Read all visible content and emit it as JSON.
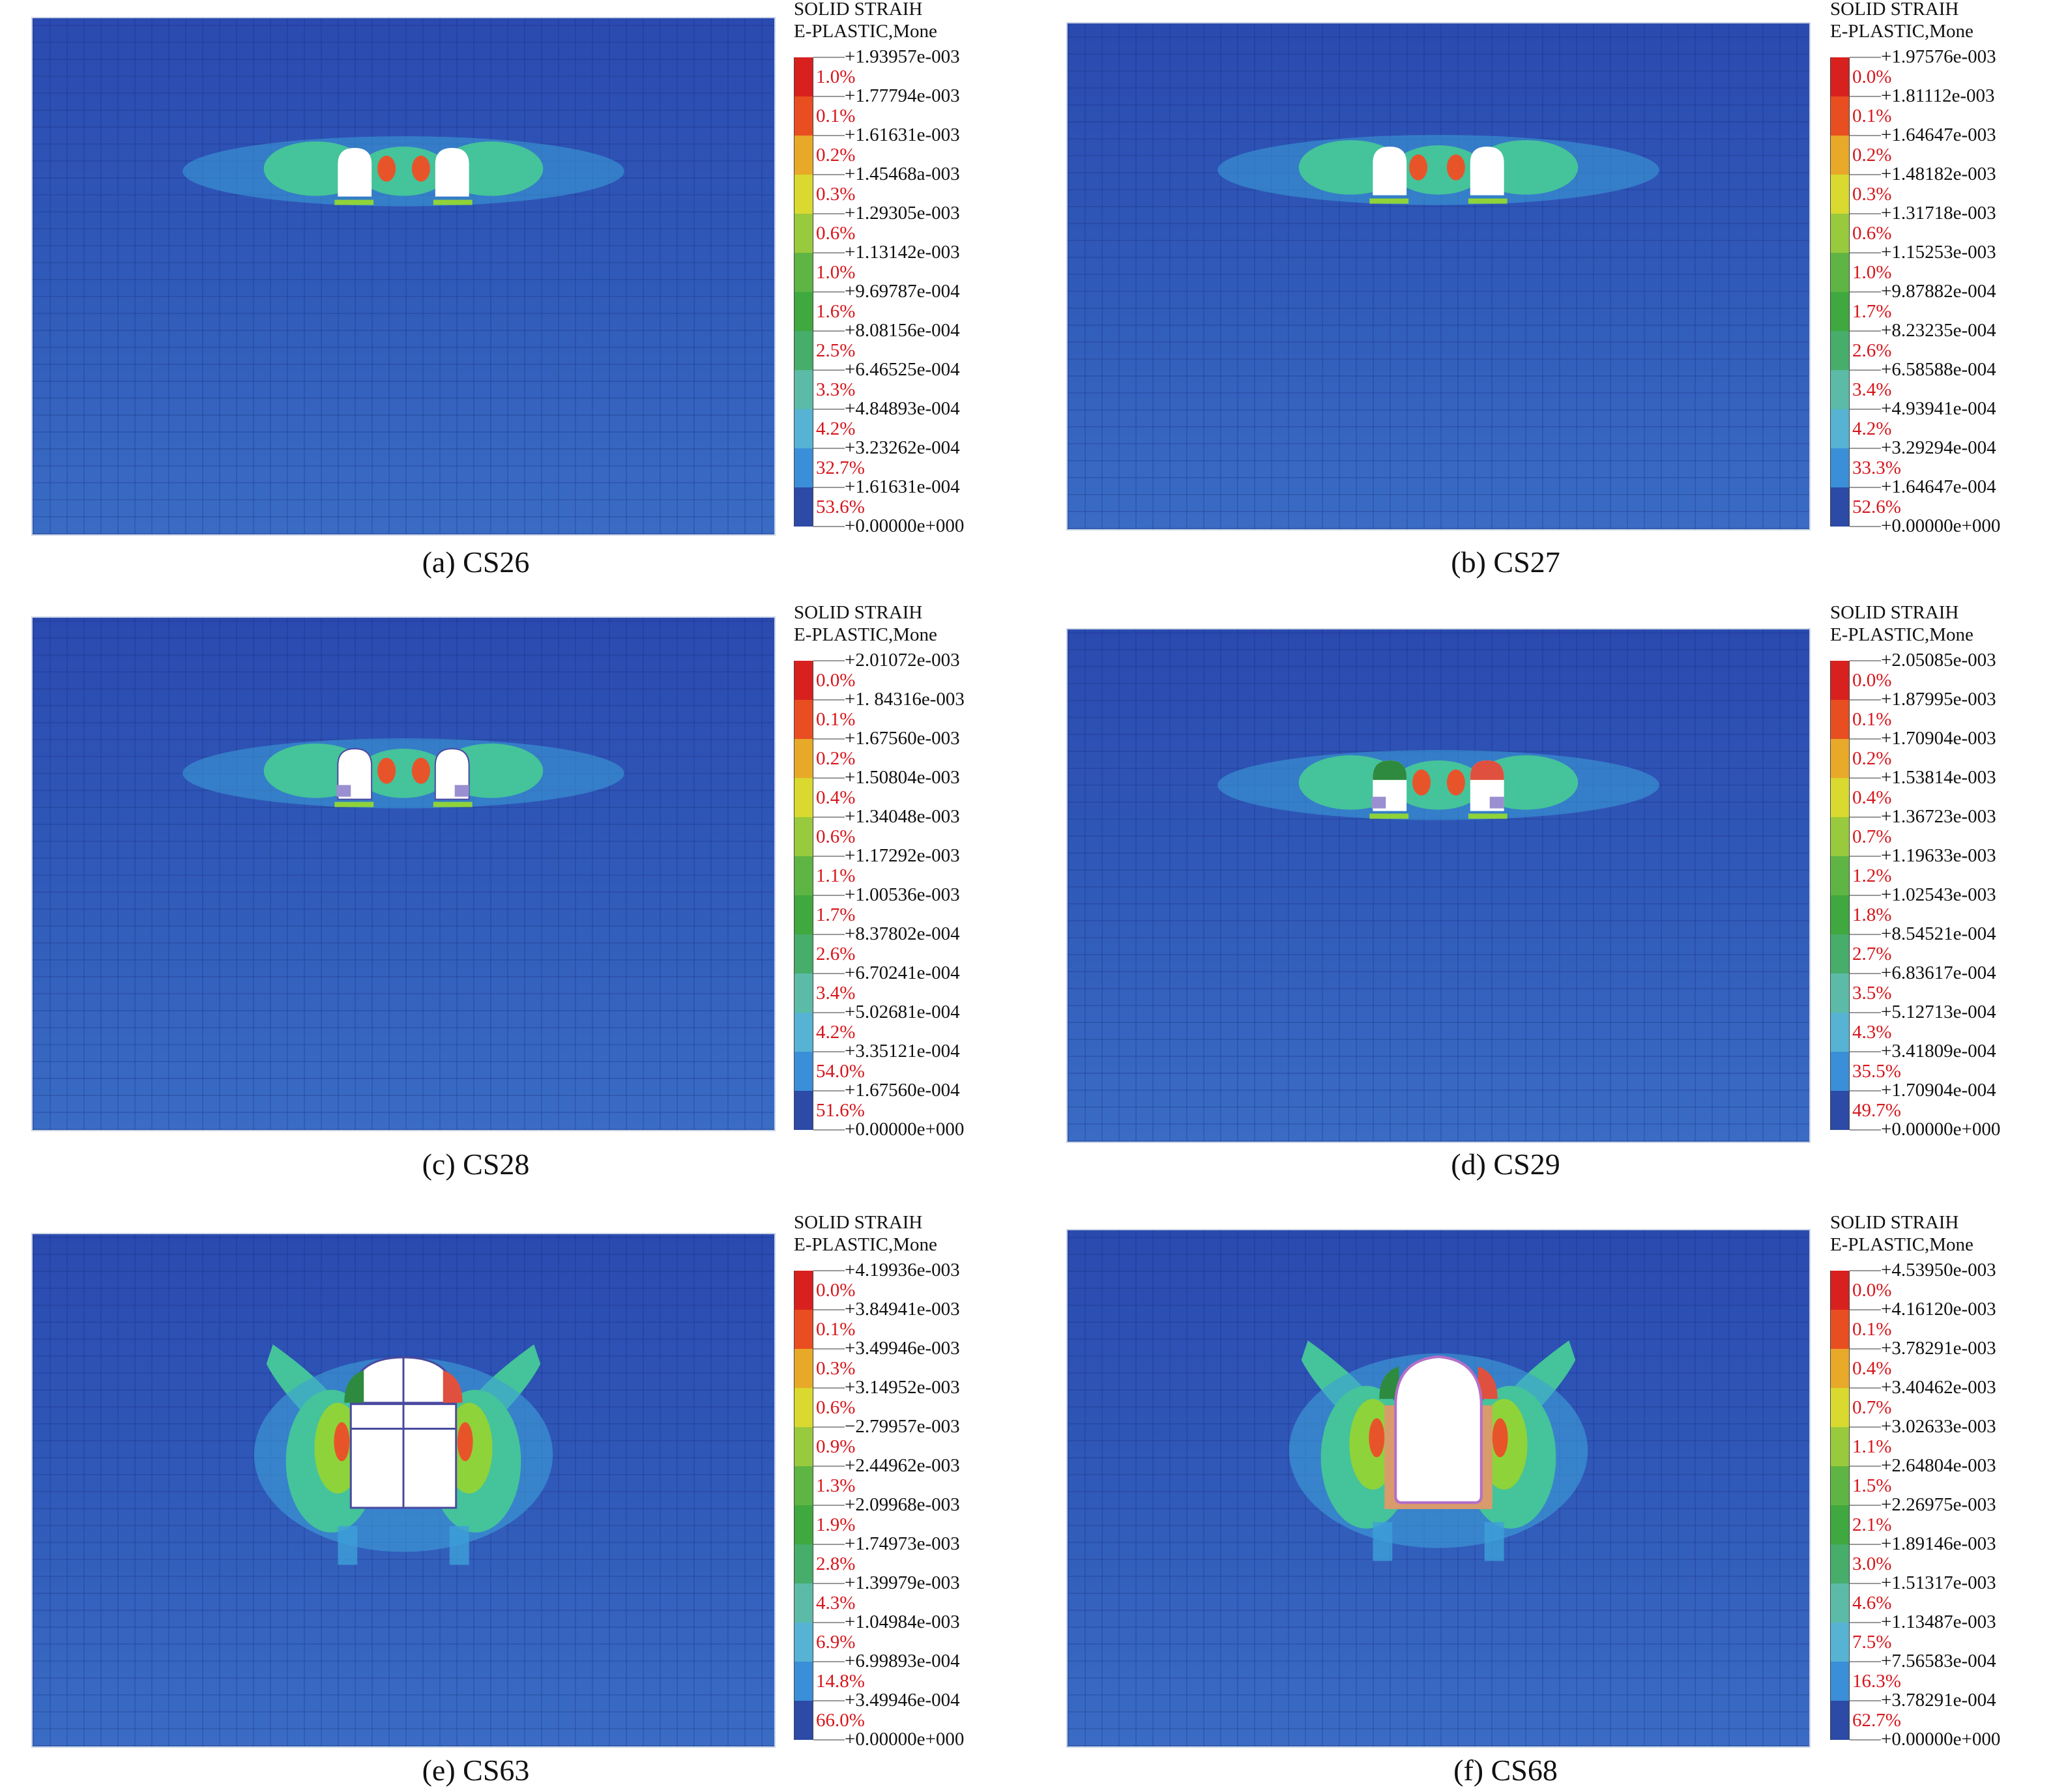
{
  "panels": [
    {
      "caption": "(a) CS26",
      "legend_title": [
        "SOLID STRAIH",
        "E-PLASTIC,Mone"
      ],
      "values": [
        "+1.93957e-003",
        "+1.77794e-003",
        "+1.61631e-003",
        "+1.45468a-003",
        "+1.29305e-003",
        "+1.13142e-003",
        "+9.69787e-004",
        "+8.08156e-004",
        "+6.46525e-004",
        "+4.84893e-004",
        "+3.23262e-004",
        "+1.61631e-004",
        "+0.00000e+000"
      ],
      "percents": [
        "1.0%",
        "0.1%",
        "0.2%",
        "0.3%",
        "0.6%",
        "1.0%",
        "1.6%",
        "2.5%",
        "3.3%",
        "4.2%",
        "32.7%",
        "53.6%"
      ]
    },
    {
      "caption": "(b) CS27",
      "legend_title": [
        "SOLID STRAIH",
        "E-PLASTIC,Mone"
      ],
      "values": [
        "+1.97576e-003",
        "+1.81112e-003",
        "+1.64647e-003",
        "+1.48182e-003",
        "+1.31718e-003",
        "+1.15253e-003",
        "+9.87882e-004",
        "+8.23235e-004",
        "+6.58588e-004",
        "+4.93941e-004",
        "+3.29294e-004",
        "+1.64647e-004",
        "+0.00000e+000"
      ],
      "percents": [
        "0.0%",
        "0.1%",
        "0.2%",
        "0.3%",
        "0.6%",
        "1.0%",
        "1.7%",
        "2.6%",
        "3.4%",
        "4.2%",
        "33.3%",
        "52.6%"
      ]
    },
    {
      "caption": "(c) CS28",
      "legend_title": [
        "SOLID STRAIH",
        "E-PLASTIC,Mone"
      ],
      "values": [
        "+2.01072e-003",
        "+1. 84316e-003",
        "+1.67560e-003",
        "+1.50804e-003",
        "+1.34048e-003",
        "+1.17292e-003",
        "+1.00536e-003",
        "+8.37802e-004",
        "+6.70241e-004",
        "+5.02681e-004",
        "+3.35121e-004",
        "+1.67560e-004",
        "+0.00000e+000"
      ],
      "percents": [
        "0.0%",
        "0.1%",
        "0.2%",
        "0.4%",
        "0.6%",
        "1.1%",
        "1.7%",
        "2.6%",
        "3.4%",
        "4.2%",
        "54.0%",
        "51.6%"
      ]
    },
    {
      "caption": "(d) CS29",
      "legend_title": [
        "SOLID STRAIH",
        "E-PLASTIC,Mone"
      ],
      "values": [
        "+2.05085e-003",
        "+1.87995e-003",
        "+1.70904e-003",
        "+1.53814e-003",
        "+1.36723e-003",
        "+1.19633e-003",
        "+1.02543e-003",
        "+8.54521e-004",
        "+6.83617e-004",
        "+5.12713e-004",
        "+3.41809e-004",
        "+1.70904e-004",
        "+0.00000e+000"
      ],
      "percents": [
        "0.0%",
        "0.1%",
        "0.2%",
        "0.4%",
        "0.7%",
        "1.2%",
        "1.8%",
        "2.7%",
        "3.5%",
        "4.3%",
        "35.5%",
        "49.7%"
      ]
    },
    {
      "caption": "(e) CS63",
      "legend_title": [
        "SOLID STRAIH",
        "E-PLASTIC,Mone"
      ],
      "values": [
        "+4.19936e-003",
        "+3.84941e-003",
        "+3.49946e-003",
        "+3.14952e-003",
        "−2.79957e-003",
        "+2.44962e-003",
        "+2.09968e-003",
        "+1.74973e-003",
        "+1.39979e-003",
        "+1.04984e-003",
        "+6.99893e-004",
        "+3.49946e-004",
        "+0.00000e+000"
      ],
      "percents": [
        "0.0%",
        "0.1%",
        "0.3%",
        "0.6%",
        "0.9%",
        "1.3%",
        "1.9%",
        "2.8%",
        "4.3%",
        "6.9%",
        "14.8%",
        "66.0%"
      ]
    },
    {
      "caption": "(f) CS68",
      "legend_title": [
        "SOLID STRAIH",
        "E-PLASTIC,Mone"
      ],
      "values": [
        "+4.53950e-003",
        "+4.16120e-003",
        "+3.78291e-003",
        "+3.40462e-003",
        "+3.02633e-003",
        "+2.64804e-003",
        "+2.26975e-003",
        "+1.89146e-003",
        "+1.51317e-003",
        "+1.13487e-003",
        "+7.56583e-004",
        "+3.78291e-004",
        "+0.00000e+000"
      ],
      "percents": [
        "0.0%",
        "0.1%",
        "0.4%",
        "0.7%",
        "1.1%",
        "1.5%",
        "2.1%",
        "3.0%",
        "4.6%",
        "7.5%",
        "16.3%",
        "62.7%"
      ]
    }
  ],
  "band_colors": [
    "#d8211f",
    "#e94e21",
    "#e8a928",
    "#d9d930",
    "#99c93d",
    "#5eb543",
    "#3fa83e",
    "#47ad6b",
    "#5cbba7",
    "#56b3d4",
    "#3a8fd8",
    "#2c4aa6"
  ],
  "contour_colors": {
    "low": "#3da0d8",
    "mid": "#45c39a",
    "high": "#8fd33a",
    "peak": "#e8542a"
  }
}
